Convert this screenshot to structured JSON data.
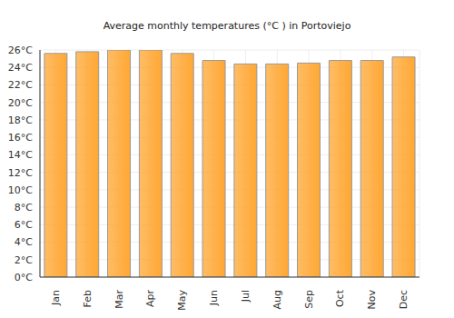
{
  "chart_data": {
    "type": "bar",
    "title": "Average monthly temperatures (°C ) in Portoviejo",
    "categories": [
      "Jan",
      "Feb",
      "Mar",
      "Apr",
      "May",
      "Jun",
      "Jul",
      "Aug",
      "Sep",
      "Oct",
      "Nov",
      "Dec"
    ],
    "values": [
      25.6,
      25.8,
      26.0,
      26.0,
      25.6,
      24.8,
      24.4,
      24.4,
      24.5,
      24.8,
      24.8,
      25.2
    ],
    "color": "#ffa733",
    "ylim": [
      0,
      26
    ],
    "yticks": [
      {
        "value": 0,
        "label": "0°C"
      },
      {
        "value": 2,
        "label": "2°C"
      },
      {
        "value": 4,
        "label": "4°C"
      },
      {
        "value": 6,
        "label": "6°C"
      },
      {
        "value": 8,
        "label": "8°C"
      },
      {
        "value": 10,
        "label": "10°C"
      },
      {
        "value": 12,
        "label": "12°C"
      },
      {
        "value": 14,
        "label": "14°C"
      },
      {
        "value": 16,
        "label": "16°C"
      },
      {
        "value": 18,
        "label": "18°C"
      },
      {
        "value": 20,
        "label": "20°C"
      },
      {
        "value": 22,
        "label": "22°C"
      },
      {
        "value": 24,
        "label": "24°C"
      },
      {
        "value": 26,
        "label": "26°C"
      }
    ],
    "grid": true
  }
}
